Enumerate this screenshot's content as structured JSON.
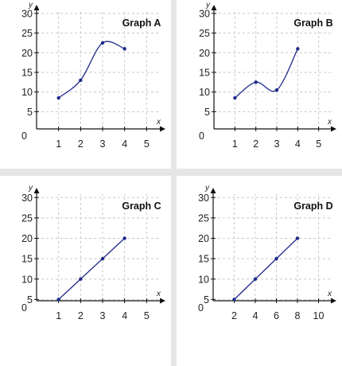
{
  "figure": {
    "background": "#e6e6e6",
    "panel_background": "#ffffff",
    "line_color": "#1f2a8a",
    "axis_color": "#111111",
    "grid_color": "#c8c8c8"
  },
  "chart_data": [
    {
      "id": "A",
      "type": "line",
      "title": "Graph A",
      "xlabel": "x",
      "ylabel": "y",
      "curve": "smooth",
      "x_ticks": [
        1,
        2,
        3,
        4,
        5
      ],
      "y_ticks": [
        5,
        10,
        15,
        20,
        25,
        30
      ],
      "origin_label": "0",
      "xlim": [
        0,
        6
      ],
      "ylim": [
        0,
        32
      ],
      "grid": true,
      "series": [
        {
          "x": [
            1,
            2,
            3,
            4
          ],
          "y": [
            8.5,
            13,
            22.5,
            21
          ]
        }
      ]
    },
    {
      "id": "B",
      "type": "line",
      "title": "Graph B",
      "xlabel": "x",
      "ylabel": "y",
      "curve": "smooth",
      "x_ticks": [
        1,
        2,
        3,
        4,
        5
      ],
      "y_ticks": [
        5,
        10,
        15,
        20,
        25,
        30
      ],
      "origin_label": "0",
      "xlim": [
        0,
        6
      ],
      "ylim": [
        0,
        32
      ],
      "grid": true,
      "series": [
        {
          "x": [
            1,
            2,
            3,
            4
          ],
          "y": [
            8.5,
            12.5,
            10.5,
            21
          ]
        }
      ]
    },
    {
      "id": "C",
      "type": "line",
      "title": "Graph C",
      "xlabel": "x",
      "ylabel": "y",
      "curve": "straight",
      "x_ticks": [
        1,
        2,
        3,
        4,
        5
      ],
      "y_ticks": [
        5,
        10,
        15,
        20,
        25,
        30
      ],
      "origin_label": "0",
      "xlim": [
        0,
        6
      ],
      "ylim": [
        0,
        32
      ],
      "grid": true,
      "series": [
        {
          "x": [
            1,
            2,
            3,
            4
          ],
          "y": [
            5,
            10,
            15,
            20
          ]
        }
      ]
    },
    {
      "id": "D",
      "type": "line",
      "title": "Graph D",
      "xlabel": "x",
      "ylabel": "y",
      "curve": "straight",
      "x_ticks": [
        2,
        4,
        6,
        8,
        10
      ],
      "y_ticks": [
        5,
        10,
        15,
        20,
        25,
        30
      ],
      "origin_label": "0",
      "xlim": [
        0,
        12
      ],
      "ylim": [
        0,
        32
      ],
      "grid": true,
      "series": [
        {
          "x": [
            2,
            4,
            6,
            8
          ],
          "y": [
            5,
            10,
            15,
            20
          ]
        }
      ]
    }
  ]
}
